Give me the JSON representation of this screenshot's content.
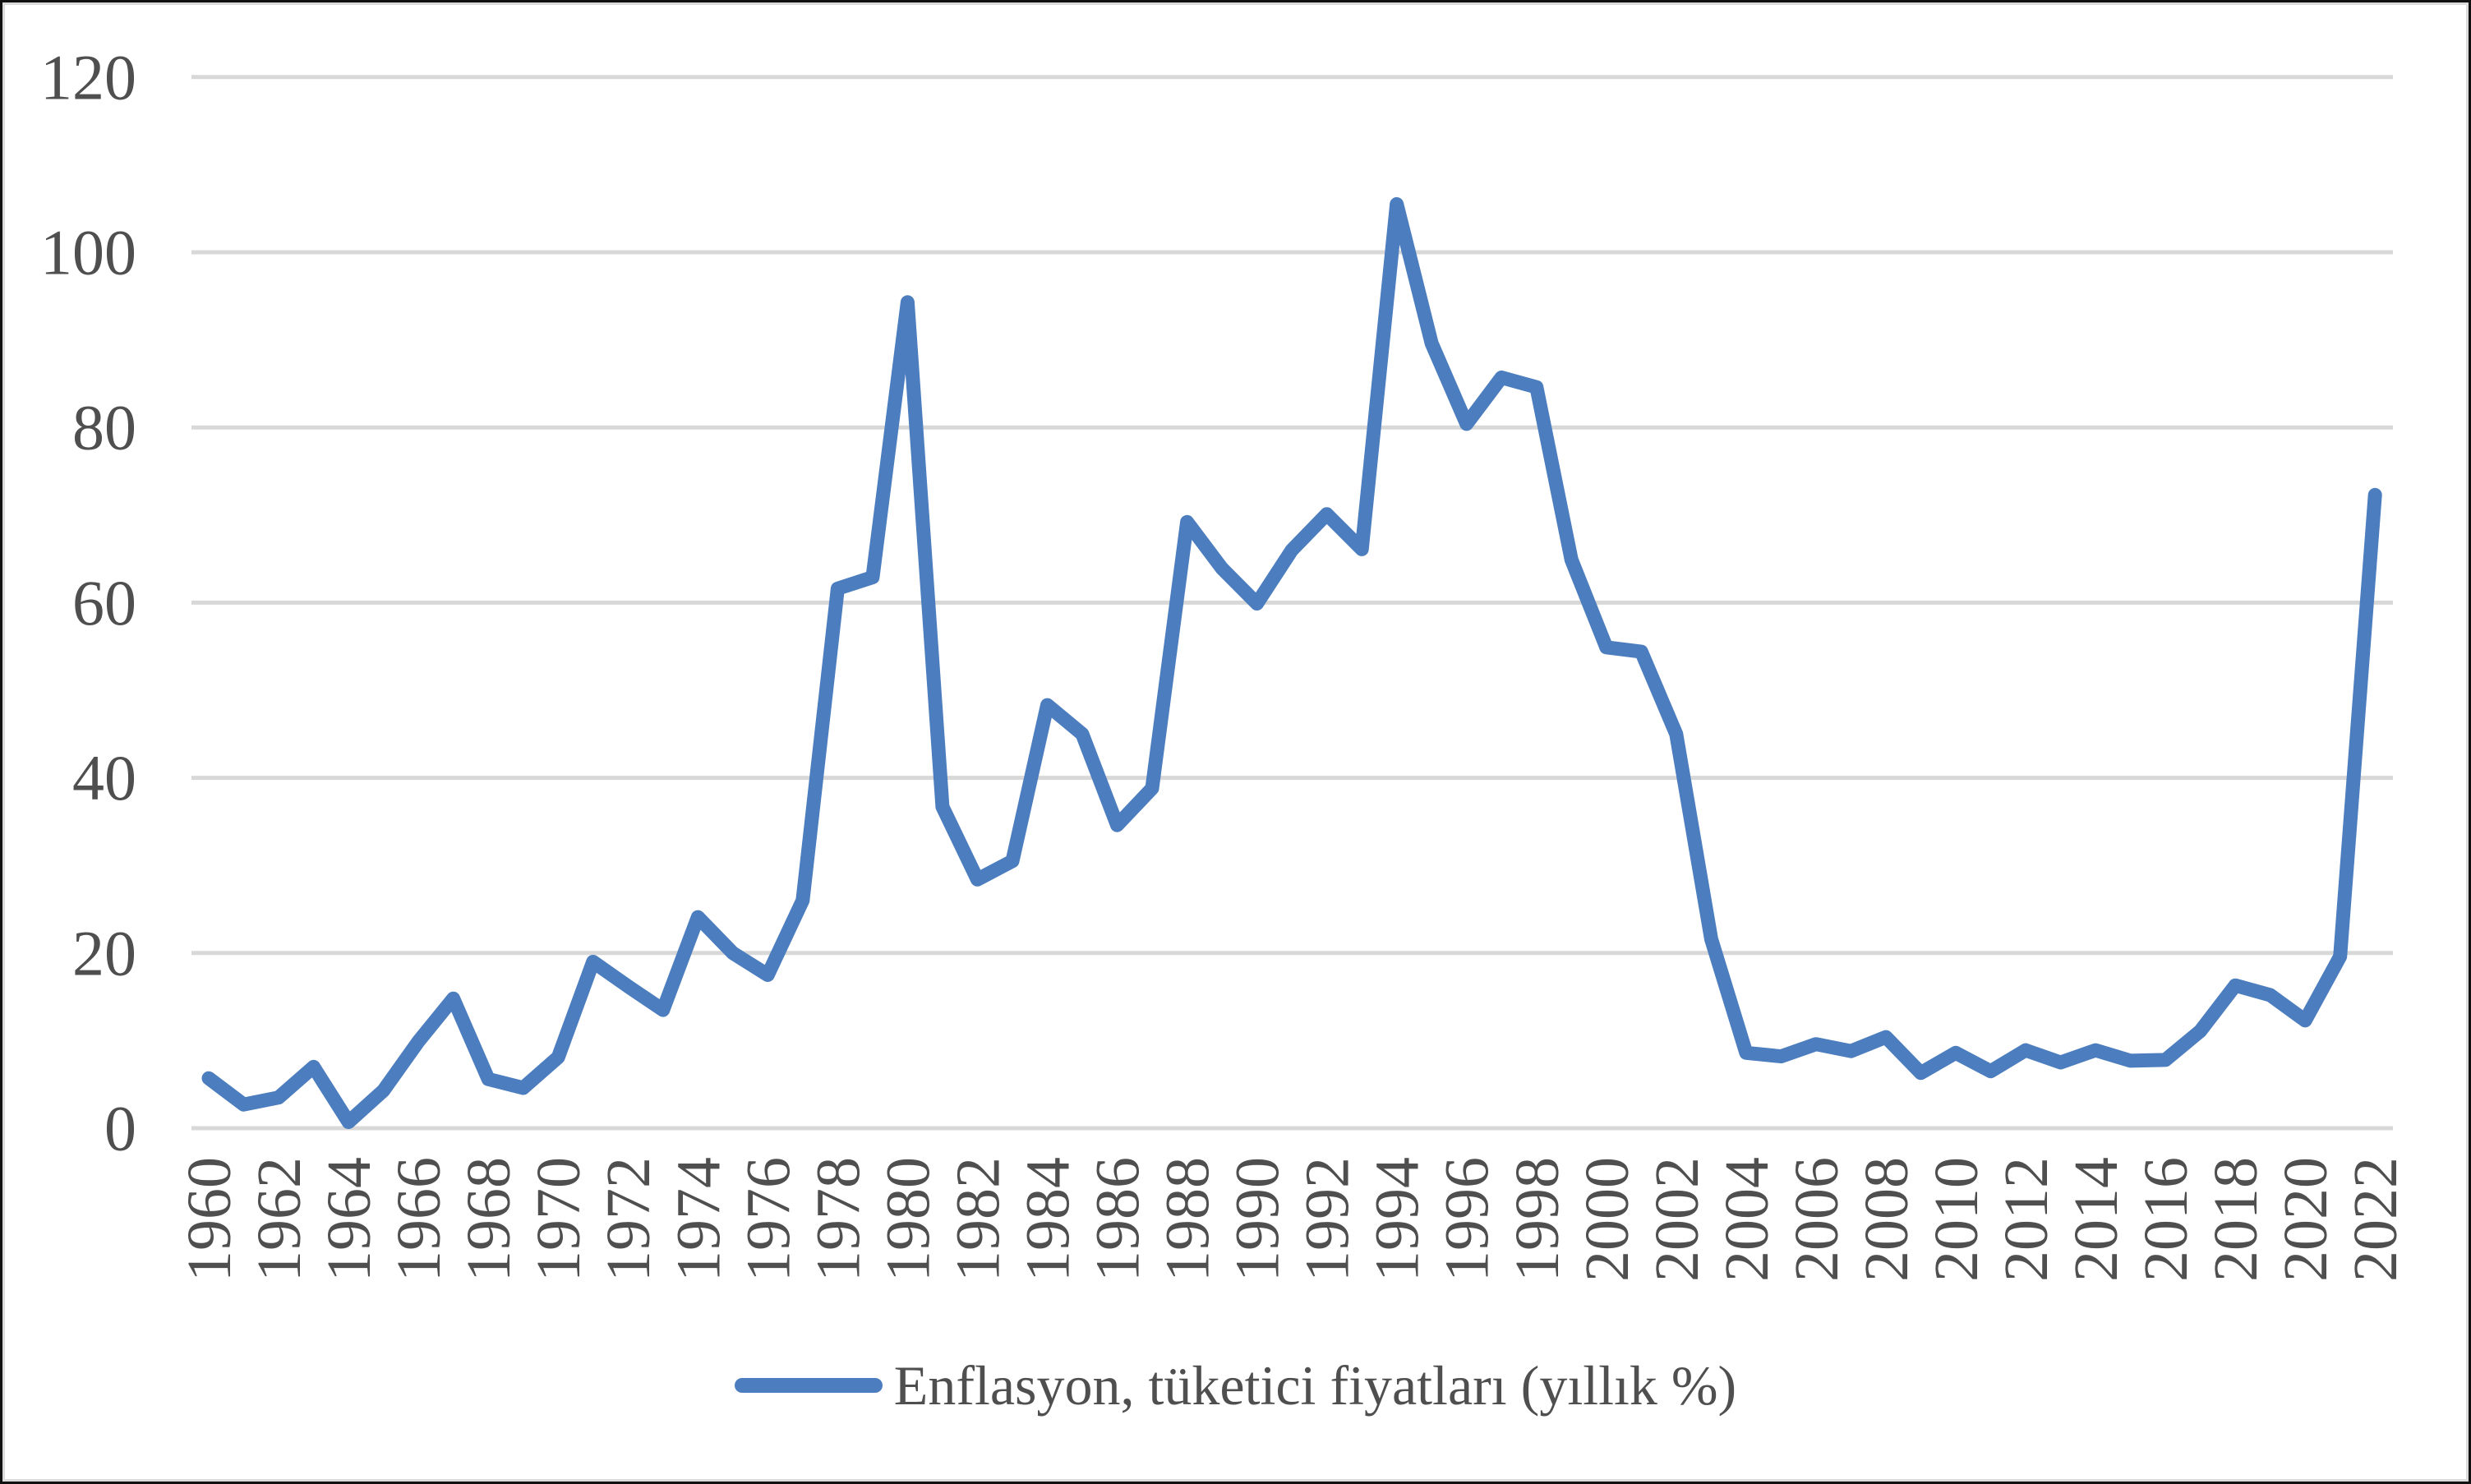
{
  "window": {
    "background": "#FFFFFF"
  },
  "legend": {
    "label": "Enflasyon, tüketici fiyatları (yıllık %)"
  },
  "colors": {
    "series_line": "#4C7DBE",
    "gridline": "#D8D8D8",
    "tick_text": "#4F4F4F",
    "outer_border": "#111111",
    "chart_border": "#DBDBDB",
    "background": "#FFFFFF"
  },
  "chart_data": {
    "type": "line",
    "title": "",
    "xlabel": "",
    "ylabel": "",
    "grid": true,
    "legend_position": "bottom",
    "marker": "none",
    "ylim": [
      0,
      120
    ],
    "y_ticks": [
      0,
      20,
      40,
      60,
      80,
      100,
      120
    ],
    "x_tick_years": [
      1960,
      1962,
      1964,
      1966,
      1968,
      1970,
      1972,
      1974,
      1976,
      1978,
      1980,
      1982,
      1984,
      1986,
      1988,
      1990,
      1992,
      1994,
      1996,
      1998,
      2000,
      2002,
      2004,
      2006,
      2008,
      2010,
      2012,
      2014,
      2016,
      2018,
      2020,
      2022
    ],
    "x": [
      1960,
      1961,
      1962,
      1963,
      1964,
      1965,
      1966,
      1967,
      1968,
      1969,
      1970,
      1971,
      1972,
      1973,
      1974,
      1975,
      1976,
      1977,
      1978,
      1979,
      1980,
      1981,
      1982,
      1983,
      1984,
      1985,
      1986,
      1987,
      1988,
      1989,
      1990,
      1991,
      1992,
      1993,
      1994,
      1995,
      1996,
      1997,
      1998,
      1999,
      2000,
      2001,
      2002,
      2003,
      2004,
      2005,
      2006,
      2007,
      2008,
      2009,
      2010,
      2011,
      2012,
      2013,
      2014,
      2015,
      2016,
      2017,
      2018,
      2019,
      2020,
      2021,
      2022
    ],
    "series": [
      {
        "name": "Enflasyon, tüketici fiyatları (yıllık %)",
        "values": [
          5.7,
          2.7,
          3.5,
          7.0,
          0.7,
          4.3,
          9.9,
          14.8,
          5.6,
          4.6,
          8.1,
          19.0,
          16.2,
          13.5,
          24.1,
          20.0,
          17.5,
          26.0,
          61.6,
          62.9,
          94.3,
          36.7,
          28.4,
          30.5,
          48.3,
          45.0,
          34.6,
          38.8,
          69.2,
          63.9,
          59.9,
          66.0,
          70.1,
          66.1,
          105.5,
          89.6,
          80.4,
          85.7,
          84.6,
          64.9,
          54.9,
          54.4,
          45.0,
          21.6,
          8.6,
          8.2,
          9.6,
          8.8,
          10.4,
          6.3,
          8.6,
          6.5,
          8.9,
          7.5,
          8.9,
          7.7,
          7.8,
          11.1,
          16.3,
          15.2,
          12.3,
          19.6,
          72.3
        ]
      }
    ]
  }
}
